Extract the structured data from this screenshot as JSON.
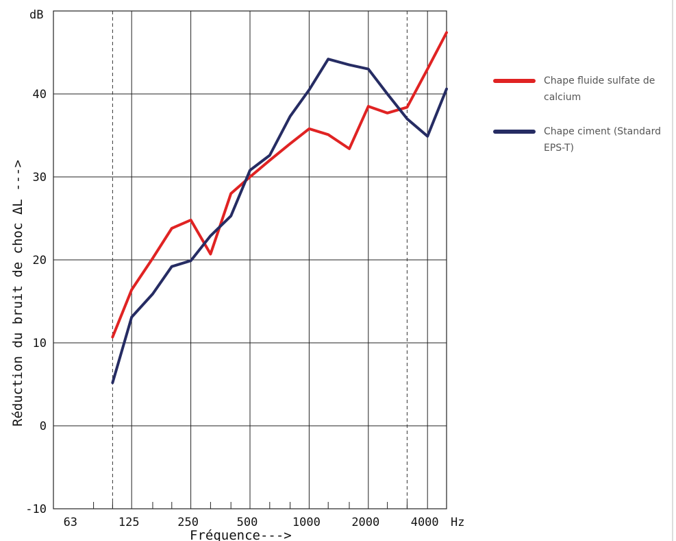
{
  "chart_data": {
    "type": "line",
    "xlabel": "Fréquence--->",
    "ylabel": "Réduction du bruit de choc  ΔL   --->",
    "y_unit": "dB",
    "x_unit": "Hz",
    "ylim": [
      -10,
      50
    ],
    "yticks": [
      -10,
      0,
      10,
      20,
      30,
      40
    ],
    "xticks": [
      "63",
      "125",
      "250",
      "500",
      "1000",
      "2000",
      "4000"
    ],
    "x": [
      100,
      125,
      160,
      200,
      250,
      315,
      400,
      500,
      630,
      800,
      1000,
      1250,
      1600,
      2000,
      2500,
      3150,
      4000,
      5000
    ],
    "grid": true,
    "dashed_reference_lines_hz": [
      100,
      3150
    ],
    "series": [
      {
        "name": "Chape fluide sulfate de calcium",
        "color": "#e02323",
        "values": [
          10.7,
          16.4,
          20.2,
          23.8,
          24.8,
          20.7,
          28.0,
          30.0,
          32.0,
          34.0,
          35.8,
          35.1,
          33.4,
          38.5,
          37.7,
          38.4,
          43.0,
          47.4
        ]
      },
      {
        "name": "Chape ciment (Standard EPS-T)",
        "color": "#262c63",
        "values": [
          5.2,
          13.1,
          15.9,
          19.2,
          19.9,
          22.9,
          25.3,
          30.8,
          32.6,
          37.3,
          40.5,
          44.2,
          43.5,
          43.0,
          40.0,
          37.0,
          34.9,
          40.6
        ]
      }
    ]
  },
  "legend": {
    "items": [
      {
        "label": "Chape fluide sulfate de calcium",
        "color": "#e02323"
      },
      {
        "label": "Chape ciment (Standard EPS-T)",
        "color": "#262c63"
      }
    ]
  }
}
